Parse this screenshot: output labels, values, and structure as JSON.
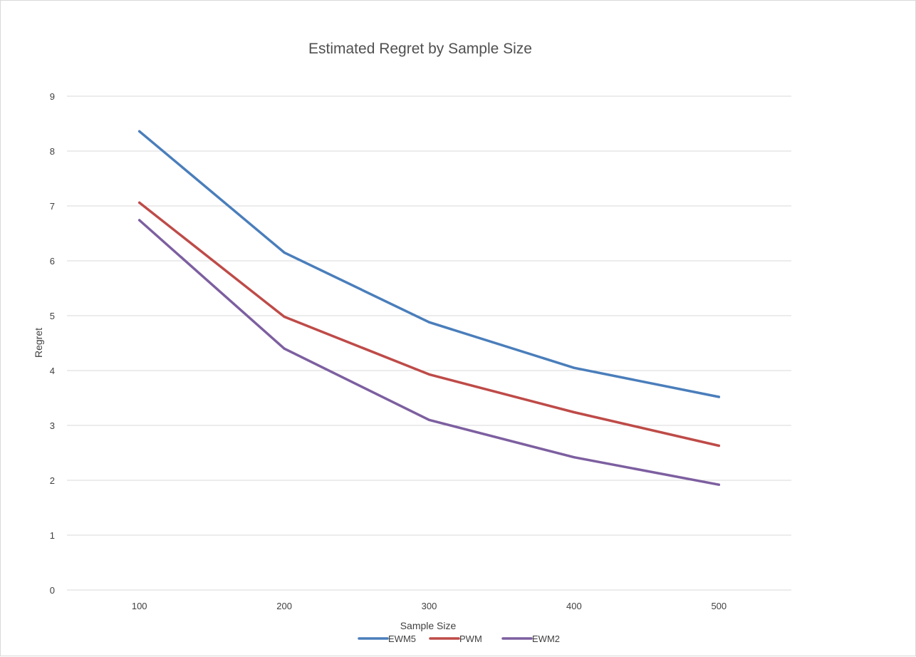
{
  "chart_data": {
    "type": "line",
    "title": "Estimated Regret by Sample Size",
    "xlabel": "Sample Size",
    "ylabel": "Regret",
    "categories": [
      "100",
      "200",
      "300",
      "400",
      "500"
    ],
    "ylim": [
      0,
      9
    ],
    "yticks": [
      "0",
      "1",
      "2",
      "3",
      "4",
      "5",
      "6",
      "7",
      "8",
      "9"
    ],
    "grid": true,
    "legend_position": "bottom",
    "series": [
      {
        "name": "EWM5",
        "color": "#4a7ebb",
        "values": [
          8.36,
          6.15,
          4.88,
          4.05,
          3.52
        ]
      },
      {
        "name": "PWM",
        "color": "#be4b48",
        "values": [
          7.06,
          4.98,
          3.93,
          3.24,
          2.63
        ]
      },
      {
        "name": "EWM2",
        "color": "#7d5fa0",
        "values": [
          6.74,
          4.4,
          3.1,
          2.42,
          1.92
        ]
      }
    ]
  }
}
